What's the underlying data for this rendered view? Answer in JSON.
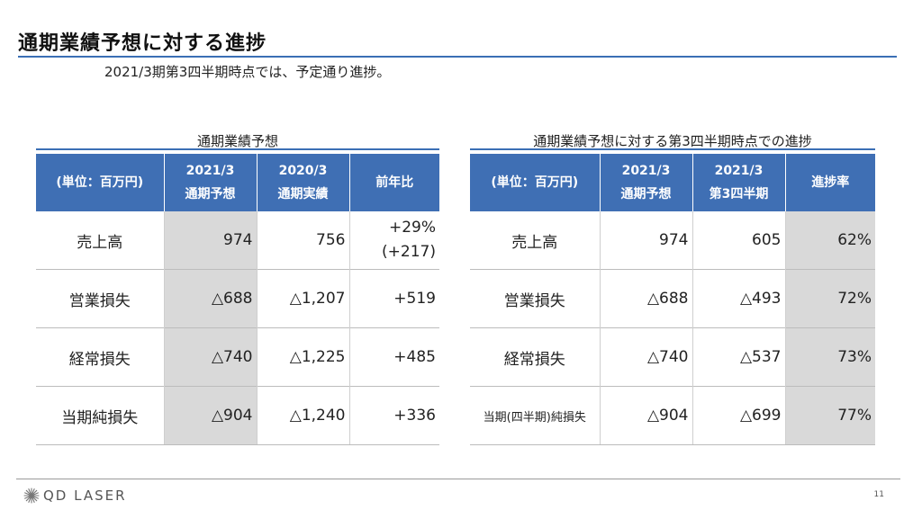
{
  "title": "通期業績予想に対する進捗",
  "subtitle": "2021/3期第3四半期時点では、予定通り進捗。",
  "left_table": {
    "caption": "通期業績予想",
    "headers": [
      "(単位：百万円)",
      "2021/3",
      "通期予想",
      "2020/3",
      "通期実績",
      "前年比"
    ],
    "rows": [
      {
        "label": "売上高",
        "forecast": "974",
        "actual": "756",
        "yoy": "+29%",
        "yoy2": "(+217)"
      },
      {
        "label": "営業損失",
        "forecast": "△688",
        "actual": "△1,207",
        "yoy": "+519"
      },
      {
        "label": "経常損失",
        "forecast": "△740",
        "actual": "△1,225",
        "yoy": "+485"
      },
      {
        "label": "当期純損失",
        "forecast": "△904",
        "actual": "△1,240",
        "yoy": "+336"
      }
    ]
  },
  "right_table": {
    "caption": "通期業績予想に対する第3四半期時点での進捗",
    "headers": [
      "(単位：百万円)",
      "2021/3",
      "通期予想",
      "2021/3",
      "第3四半期",
      "進捗率"
    ],
    "rows": [
      {
        "label": "売上高",
        "forecast": "974",
        "q3": "605",
        "progress": "62%"
      },
      {
        "label": "営業損失",
        "forecast": "△688",
        "q3": "△493",
        "progress": "72%"
      },
      {
        "label": "経常損失",
        "forecast": "△740",
        "q3": "△537",
        "progress": "73%"
      },
      {
        "label": "当期(四半期)純損失",
        "forecast": "△904",
        "q3": "△699",
        "progress": "77%"
      }
    ]
  },
  "footer": {
    "logo_text": "QD LASER",
    "logo_icon": "starburst-icon",
    "page_number": "11"
  },
  "colors": {
    "header_bg": "#3f6fb4",
    "accent_line": "#3a6fb5",
    "shade": "#d9d9d9"
  }
}
